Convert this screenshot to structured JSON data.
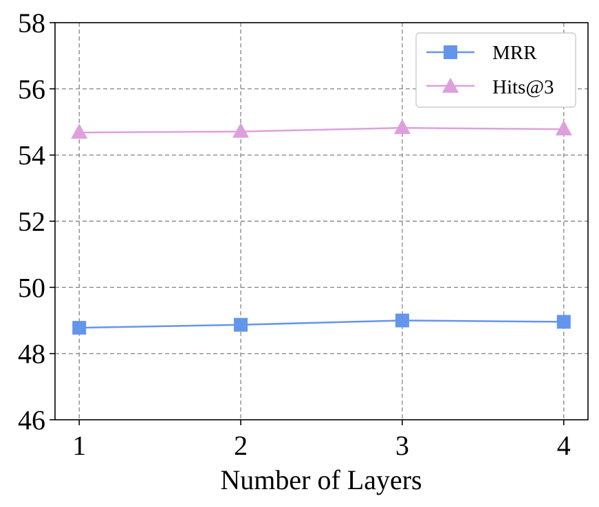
{
  "chart_data": {
    "type": "line",
    "x": [
      1,
      2,
      3,
      4
    ],
    "xlabel": "Number of Layers",
    "ylabel": "",
    "title": "",
    "xticks": [
      "1",
      "2",
      "3",
      "4"
    ],
    "yticks": [
      "46",
      "48",
      "50",
      "52",
      "54",
      "56",
      "58"
    ],
    "ylim": [
      46,
      58
    ],
    "grid": true,
    "legend_position": "top-right",
    "series": [
      {
        "name": "MRR",
        "values": [
          48.78,
          48.87,
          49.0,
          48.96
        ],
        "color": "#6495ed",
        "marker": "square"
      },
      {
        "name": "Hits@3",
        "values": [
          54.68,
          54.71,
          54.82,
          54.78
        ],
        "color": "#dda0dd",
        "marker": "triangle"
      }
    ]
  }
}
